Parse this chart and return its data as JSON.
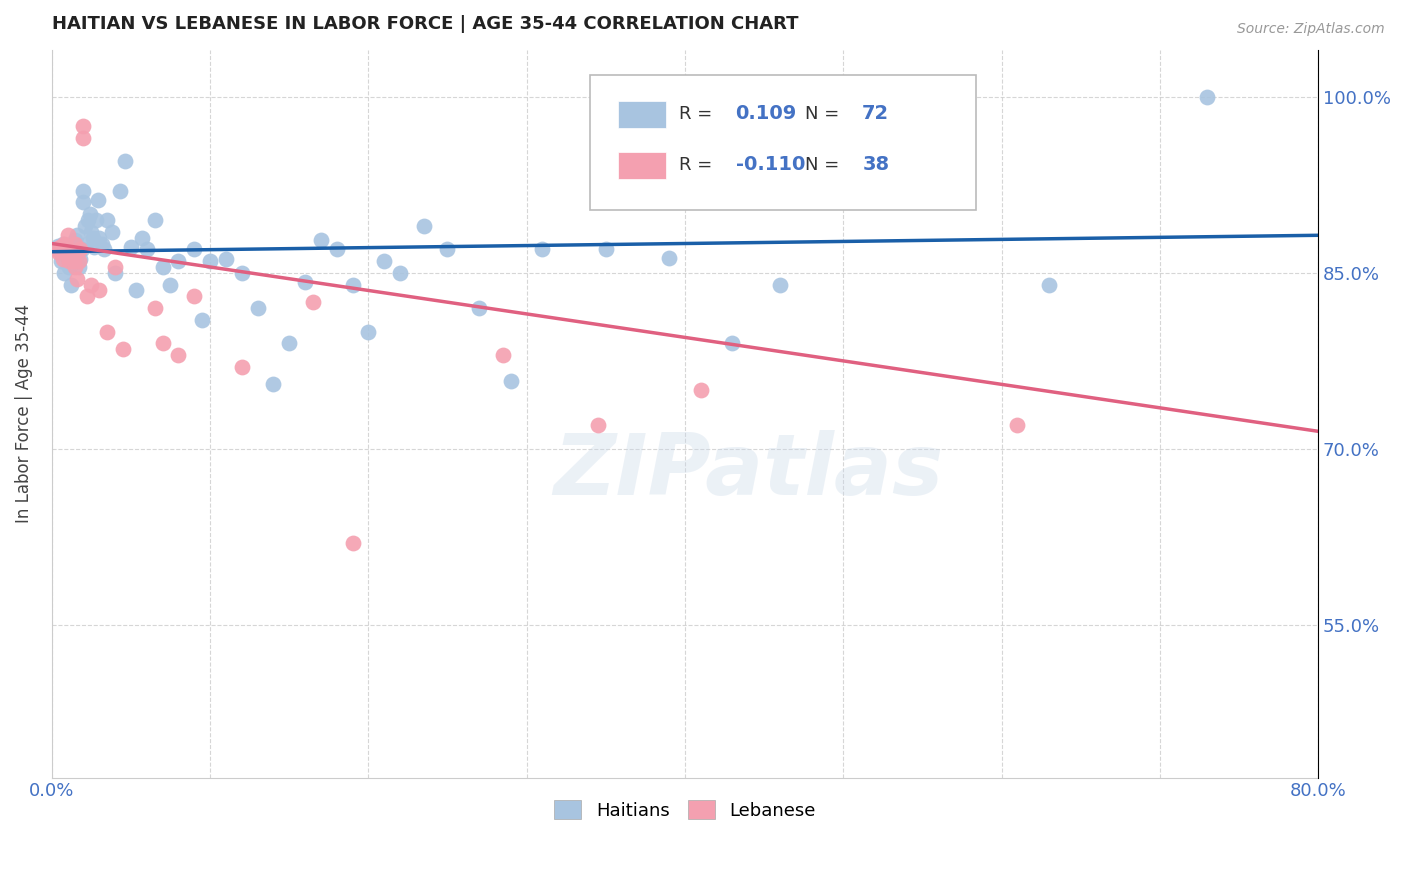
{
  "title": "HAITIAN VS LEBANESE IN LABOR FORCE | AGE 35-44 CORRELATION CHART",
  "source": "Source: ZipAtlas.com",
  "ylabel": "In Labor Force | Age 35-44",
  "xlim": [
    0.0,
    0.8
  ],
  "ylim": [
    0.42,
    1.04
  ],
  "yticks": [
    0.55,
    0.7,
    0.85,
    1.0
  ],
  "ytick_labels": [
    "55.0%",
    "70.0%",
    "85.0%",
    "100.0%"
  ],
  "xticks": [
    0.0,
    0.1,
    0.2,
    0.3,
    0.4,
    0.5,
    0.6,
    0.7,
    0.8
  ],
  "xtick_labels": [
    "0.0%",
    "",
    "",
    "",
    "",
    "",
    "",
    "",
    "80.0%"
  ],
  "legend_r_haitian": "0.109",
  "legend_n_haitian": "72",
  "legend_r_lebanese": "-0.110",
  "legend_n_lebanese": "38",
  "haitian_color": "#a8c4e0",
  "lebanese_color": "#f4a0b0",
  "line_haitian_color": "#1a5fa8",
  "line_lebanese_color": "#e06080",
  "watermark": "ZIPatlas",
  "background_color": "#ffffff",
  "title_color": "#222222",
  "axis_label_color": "#444444",
  "tick_color": "#4472c4",
  "source_color": "#999999",
  "haitian_x": [
    0.004,
    0.006,
    0.007,
    0.008,
    0.009,
    0.01,
    0.011,
    0.012,
    0.013,
    0.013,
    0.014,
    0.015,
    0.015,
    0.016,
    0.016,
    0.017,
    0.018,
    0.018,
    0.019,
    0.02,
    0.02,
    0.021,
    0.022,
    0.023,
    0.024,
    0.025,
    0.026,
    0.027,
    0.028,
    0.029,
    0.03,
    0.032,
    0.033,
    0.035,
    0.038,
    0.04,
    0.043,
    0.046,
    0.05,
    0.053,
    0.057,
    0.06,
    0.065,
    0.07,
    0.075,
    0.08,
    0.09,
    0.095,
    0.1,
    0.11,
    0.12,
    0.13,
    0.14,
    0.15,
    0.16,
    0.17,
    0.18,
    0.19,
    0.2,
    0.21,
    0.22,
    0.235,
    0.25,
    0.27,
    0.29,
    0.31,
    0.35,
    0.39,
    0.43,
    0.46,
    0.63,
    0.73
  ],
  "haitian_y": [
    0.873,
    0.86,
    0.875,
    0.85,
    0.865,
    0.87,
    0.855,
    0.84,
    0.858,
    0.875,
    0.868,
    0.878,
    0.872,
    0.882,
    0.865,
    0.855,
    0.87,
    0.862,
    0.87,
    0.91,
    0.92,
    0.89,
    0.875,
    0.895,
    0.9,
    0.885,
    0.88,
    0.872,
    0.895,
    0.912,
    0.88,
    0.875,
    0.87,
    0.895,
    0.885,
    0.85,
    0.92,
    0.945,
    0.872,
    0.835,
    0.88,
    0.87,
    0.895,
    0.855,
    0.84,
    0.86,
    0.87,
    0.81,
    0.86,
    0.862,
    0.85,
    0.82,
    0.755,
    0.79,
    0.842,
    0.878,
    0.87,
    0.84,
    0.8,
    0.86,
    0.85,
    0.89,
    0.87,
    0.82,
    0.758,
    0.87,
    0.87,
    0.863,
    0.79,
    0.84,
    0.84,
    1.0
  ],
  "lebanese_x": [
    0.003,
    0.004,
    0.005,
    0.006,
    0.007,
    0.008,
    0.008,
    0.009,
    0.01,
    0.01,
    0.011,
    0.012,
    0.013,
    0.014,
    0.015,
    0.015,
    0.016,
    0.017,
    0.018,
    0.02,
    0.02,
    0.022,
    0.025,
    0.03,
    0.035,
    0.04,
    0.045,
    0.065,
    0.07,
    0.08,
    0.09,
    0.12,
    0.165,
    0.19,
    0.285,
    0.345,
    0.41,
    0.61
  ],
  "lebanese_y": [
    0.87,
    0.868,
    0.872,
    0.87,
    0.862,
    0.875,
    0.868,
    0.873,
    0.882,
    0.87,
    0.86,
    0.862,
    0.865,
    0.86,
    0.875,
    0.855,
    0.845,
    0.86,
    0.87,
    0.975,
    0.965,
    0.83,
    0.84,
    0.835,
    0.8,
    0.855,
    0.785,
    0.82,
    0.79,
    0.78,
    0.83,
    0.77,
    0.825,
    0.62,
    0.78,
    0.72,
    0.75,
    0.72
  ],
  "grid_color": "#cccccc"
}
